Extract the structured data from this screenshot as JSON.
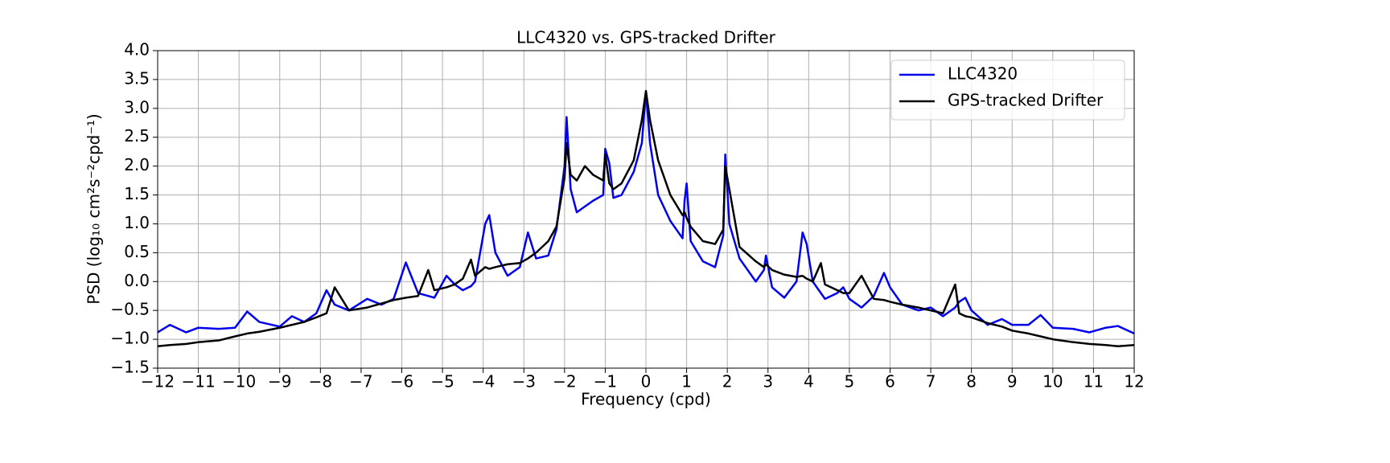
{
  "chart_data": {
    "type": "line",
    "title": "LLC4320 vs. GPS-tracked Drifter",
    "xlabel": "Frequency (cpd)",
    "ylabel": "PSD (log₁₀ cm²s⁻²cpd⁻¹)",
    "x": [
      -12,
      -11.7,
      -11.3,
      -11,
      -10.5,
      -10.1,
      -9.8,
      -9.5,
      -9,
      -8.7,
      -8.4,
      -8.1,
      -7.85,
      -7.65,
      -7.3,
      -6.85,
      -6.5,
      -6.2,
      -5.9,
      -5.6,
      -5.35,
      -5.2,
      -4.9,
      -4.7,
      -4.5,
      -4.3,
      -4.2,
      -3.95,
      -3.85,
      -3.7,
      -3.4,
      -3.1,
      -2.9,
      -2.7,
      -2.4,
      -2.2,
      -2.0,
      -1.95,
      -1.85,
      -1.7,
      -1.5,
      -1.3,
      -1.05,
      -1.0,
      -0.9,
      -0.8,
      -0.6,
      -0.3,
      -0.1,
      0,
      0.1,
      0.3,
      0.6,
      0.9,
      0.95,
      1.0,
      1.1,
      1.4,
      1.7,
      1.9,
      1.95,
      2.05,
      2.3,
      2.7,
      2.9,
      2.95,
      3.1,
      3.4,
      3.7,
      3.85,
      3.95,
      4.1,
      4.3,
      4.4,
      4.7,
      4.85,
      5.0,
      5.3,
      5.6,
      5.85,
      6.0,
      6.3,
      6.7,
      7.0,
      7.3,
      7.6,
      7.7,
      7.85,
      8.0,
      8.4,
      8.75,
      9.0,
      9.4,
      9.7,
      10.0,
      10.5,
      10.9,
      11.3,
      11.6,
      12
    ],
    "series": [
      {
        "name": "LLC4320",
        "color": "#0000ee",
        "values": [
          -0.88,
          -0.75,
          -0.88,
          -0.8,
          -0.82,
          -0.8,
          -0.52,
          -0.7,
          -0.78,
          -0.6,
          -0.7,
          -0.55,
          -0.15,
          -0.4,
          -0.5,
          -0.3,
          -0.4,
          -0.3,
          0.33,
          -0.2,
          -0.25,
          -0.28,
          0.1,
          -0.05,
          -0.15,
          -0.08,
          0.0,
          1.0,
          1.15,
          0.5,
          0.1,
          0.25,
          0.85,
          0.4,
          0.45,
          0.9,
          2.0,
          2.85,
          1.6,
          1.2,
          1.3,
          1.4,
          1.5,
          2.3,
          2.05,
          1.45,
          1.5,
          1.9,
          2.4,
          3.3,
          2.4,
          1.5,
          1.05,
          0.75,
          1.4,
          1.7,
          0.7,
          0.35,
          0.25,
          0.8,
          2.2,
          1.0,
          0.4,
          0.0,
          0.2,
          0.45,
          -0.1,
          -0.28,
          0.0,
          0.85,
          0.65,
          0.0,
          -0.2,
          -0.3,
          -0.2,
          -0.1,
          -0.3,
          -0.45,
          -0.25,
          0.15,
          -0.1,
          -0.4,
          -0.5,
          -0.45,
          -0.6,
          -0.45,
          -0.35,
          -0.28,
          -0.5,
          -0.75,
          -0.65,
          -0.75,
          -0.75,
          -0.58,
          -0.8,
          -0.82,
          -0.88,
          -0.8,
          -0.77,
          -0.9
        ]
      },
      {
        "name": "GPS-tracked Drifter",
        "color": "#000000",
        "values": [
          -1.12,
          -1.1,
          -1.08,
          -1.05,
          -1.02,
          -0.95,
          -0.9,
          -0.87,
          -0.8,
          -0.75,
          -0.7,
          -0.62,
          -0.55,
          -0.1,
          -0.5,
          -0.45,
          -0.38,
          -0.32,
          -0.28,
          -0.25,
          0.2,
          -0.15,
          -0.1,
          -0.05,
          0.05,
          0.38,
          0.1,
          0.25,
          0.22,
          0.25,
          0.3,
          0.32,
          0.4,
          0.5,
          0.7,
          0.95,
          1.8,
          2.4,
          1.85,
          1.75,
          2.0,
          1.85,
          1.75,
          2.2,
          1.7,
          1.6,
          1.7,
          2.1,
          2.8,
          3.3,
          2.8,
          2.1,
          1.5,
          1.15,
          1.2,
          1.1,
          0.95,
          0.7,
          0.65,
          0.9,
          2.0,
          1.6,
          0.6,
          0.35,
          0.25,
          0.3,
          0.2,
          0.12,
          0.08,
          0.1,
          0.05,
          0.0,
          0.32,
          -0.05,
          -0.15,
          -0.2,
          -0.2,
          0.1,
          -0.3,
          -0.32,
          -0.35,
          -0.4,
          -0.45,
          -0.5,
          -0.55,
          -0.05,
          -0.55,
          -0.6,
          -0.62,
          -0.72,
          -0.78,
          -0.85,
          -0.9,
          -0.95,
          -1.0,
          -1.05,
          -1.08,
          -1.1,
          -1.12,
          -1.1
        ]
      }
    ],
    "xlim": [
      -12,
      12
    ],
    "xticks": [
      {
        "value": -12,
        "label": "−12"
      },
      {
        "value": -11,
        "label": "−11"
      },
      {
        "value": -10,
        "label": "−10"
      },
      {
        "value": -9,
        "label": "−9"
      },
      {
        "value": -8,
        "label": "−8"
      },
      {
        "value": -7,
        "label": "−7"
      },
      {
        "value": -6,
        "label": "−6"
      },
      {
        "value": -5,
        "label": "−5"
      },
      {
        "value": -4,
        "label": "−4"
      },
      {
        "value": -3,
        "label": "−3"
      },
      {
        "value": -2,
        "label": "−2"
      },
      {
        "value": -1,
        "label": "−1"
      },
      0,
      1,
      2,
      3,
      4,
      5,
      6,
      7,
      8,
      9,
      10,
      11,
      12
    ],
    "ylim": [
      -1.5,
      4.0
    ],
    "yticks": [
      {
        "value": -1.5,
        "label": "−1.5"
      },
      {
        "value": -1.0,
        "label": "−1.0"
      },
      {
        "value": -0.5,
        "label": "−0.5"
      },
      {
        "value": 0,
        "label": "0.0"
      },
      {
        "value": 0.5,
        "label": "0.5"
      },
      {
        "value": 1,
        "label": "1.0"
      },
      {
        "value": 1.5,
        "label": "1.5"
      },
      {
        "value": 2,
        "label": "2.0"
      },
      {
        "value": 2.5,
        "label": "2.5"
      },
      {
        "value": 3,
        "label": "3.0"
      },
      {
        "value": 3.5,
        "label": "3.5"
      },
      {
        "value": 4,
        "label": "4.0"
      }
    ],
    "grid": true,
    "legend": "upper-right"
  }
}
